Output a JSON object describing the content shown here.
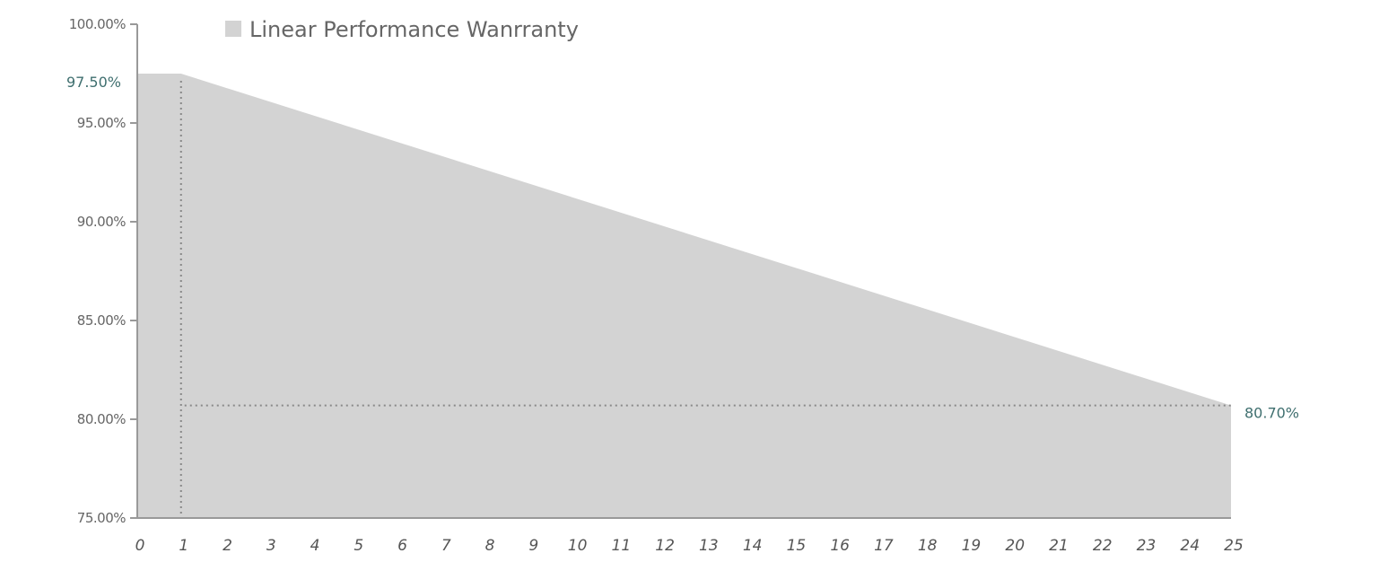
{
  "chart_data": {
    "type": "area",
    "legend": {
      "label": "Linear Performance Wanrranty",
      "position": "top"
    },
    "x": [
      0,
      1,
      2,
      3,
      4,
      5,
      6,
      7,
      8,
      9,
      10,
      11,
      12,
      13,
      14,
      15,
      16,
      17,
      18,
      19,
      20,
      21,
      22,
      23,
      24,
      25
    ],
    "x_tick_labels": [
      "0",
      "1",
      "2",
      "3",
      "4",
      "5",
      "6",
      "7",
      "8",
      "9",
      "10",
      "11",
      "12",
      "13",
      "14",
      "15",
      "16",
      "17",
      "18",
      "19",
      "20",
      "21",
      "22",
      "23",
      "24",
      "25"
    ],
    "series": [
      {
        "name": "Linear Performance Wanrranty",
        "points": [
          [
            0,
            97.5
          ],
          [
            1,
            97.5
          ],
          [
            25,
            80.7
          ]
        ],
        "color": "#d3d3d3"
      }
    ],
    "ylim": [
      75,
      100
    ],
    "xlim": [
      0,
      25
    ],
    "y_ticks": [
      75,
      80,
      85,
      90,
      95,
      100
    ],
    "y_tick_labels": [
      "75.00%",
      "80.00%",
      "85.00%",
      "90.00%",
      "95.00%",
      "100.00%"
    ],
    "annotations": [
      {
        "text": "97.50%",
        "x": 0,
        "y": 97.5,
        "side": "left",
        "color": "#3f6f6f"
      },
      {
        "text": "80.70%",
        "x": 25,
        "y": 80.7,
        "side": "right",
        "color": "#3f6f6f"
      }
    ],
    "reference_lines": [
      {
        "orientation": "vertical",
        "x": 1,
        "style": "dotted"
      },
      {
        "orientation": "horizontal",
        "y": 80.7,
        "style": "dotted"
      }
    ],
    "grid": false,
    "axis_color": "#999999"
  }
}
